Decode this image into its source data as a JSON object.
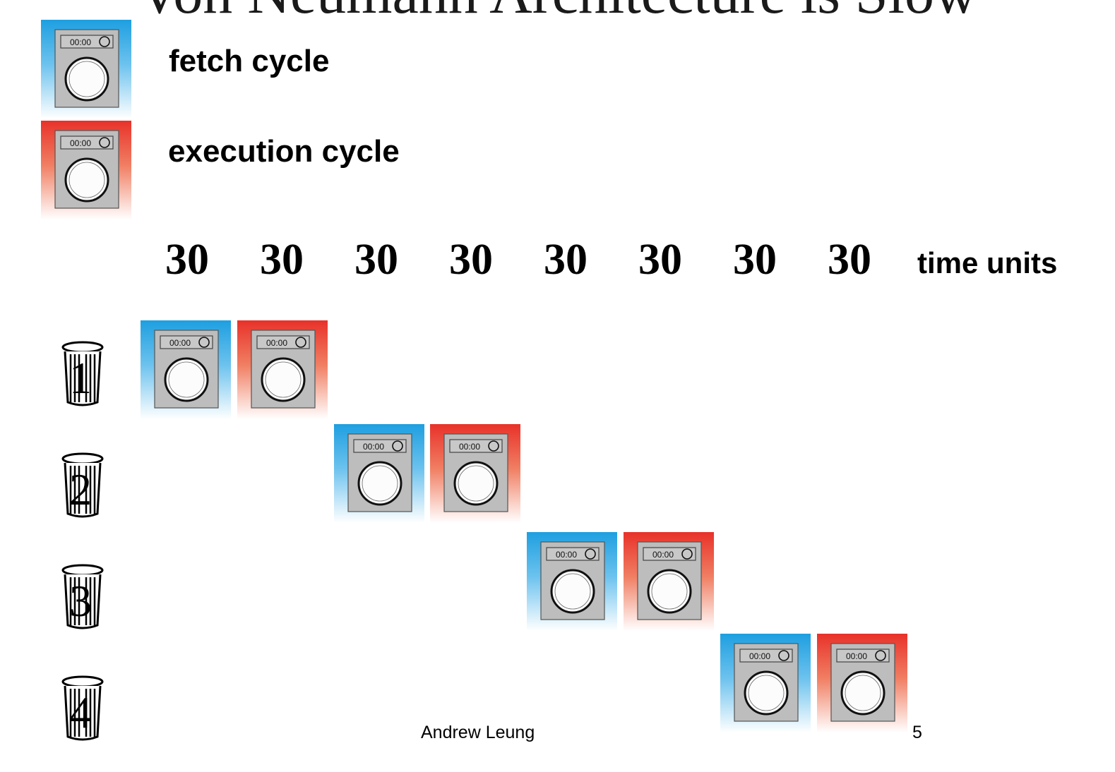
{
  "slide": {
    "title": "Von Neumann Architecture is Slow",
    "author": "Andrew Leung",
    "page_number": "5"
  },
  "legend": {
    "fetch_label": "fetch cycle",
    "execution_label": "execution cycle",
    "fetch_color": "#1e9fe0",
    "execution_color": "#e8322a"
  },
  "timeline": {
    "durations": [
      "30",
      "30",
      "30",
      "30",
      "30",
      "30",
      "30",
      "30"
    ],
    "unit_label": "time units"
  },
  "washer_display": "00:00",
  "loads": [
    {
      "label": "1",
      "fetch_slot": 1,
      "exec_slot": 2
    },
    {
      "label": "2",
      "fetch_slot": 3,
      "exec_slot": 4
    },
    {
      "label": "3",
      "fetch_slot": 5,
      "exec_slot": 6
    },
    {
      "label": "4",
      "fetch_slot": 7,
      "exec_slot": 8
    }
  ],
  "icons": {
    "washer": "washing-machine-icon",
    "bin": "laundry-basket-icon"
  }
}
